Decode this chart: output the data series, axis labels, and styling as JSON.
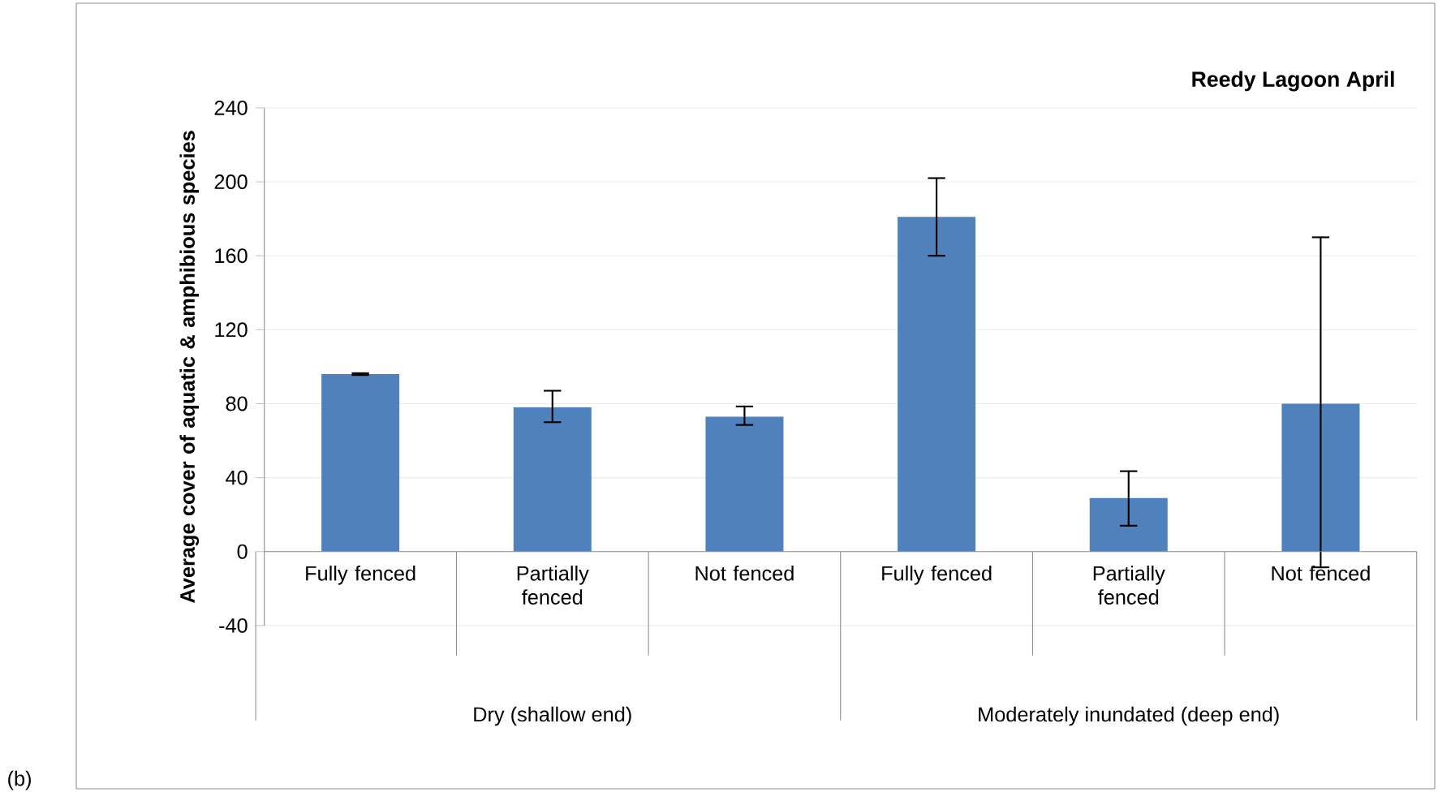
{
  "chart_data": {
    "type": "bar",
    "title": "Reedy Lagoon April",
    "ylabel": "Average cover of aquatic & amphibious species",
    "categories": [
      "Fully fenced",
      "Partially fenced",
      "Not fenced",
      "Fully fenced",
      "Partially fenced",
      "Not fenced"
    ],
    "values": [
      96,
      78,
      73,
      181,
      29,
      80
    ],
    "errors": [
      0.5,
      [
        70,
        87
      ],
      [
        68.5,
        78.5
      ],
      [
        160,
        202
      ],
      [
        14,
        43.5
      ],
      [
        -8.5,
        170
      ]
    ],
    "color": "#4f81bd",
    "ylim": [
      -40,
      240
    ],
    "yticks": [
      -40,
      0,
      40,
      80,
      120,
      160,
      200,
      240
    ],
    "grid": "y",
    "annotations": [
      "Dry (shallow end)",
      "Moderately inundated (deep end)",
      "(b)"
    ]
  }
}
